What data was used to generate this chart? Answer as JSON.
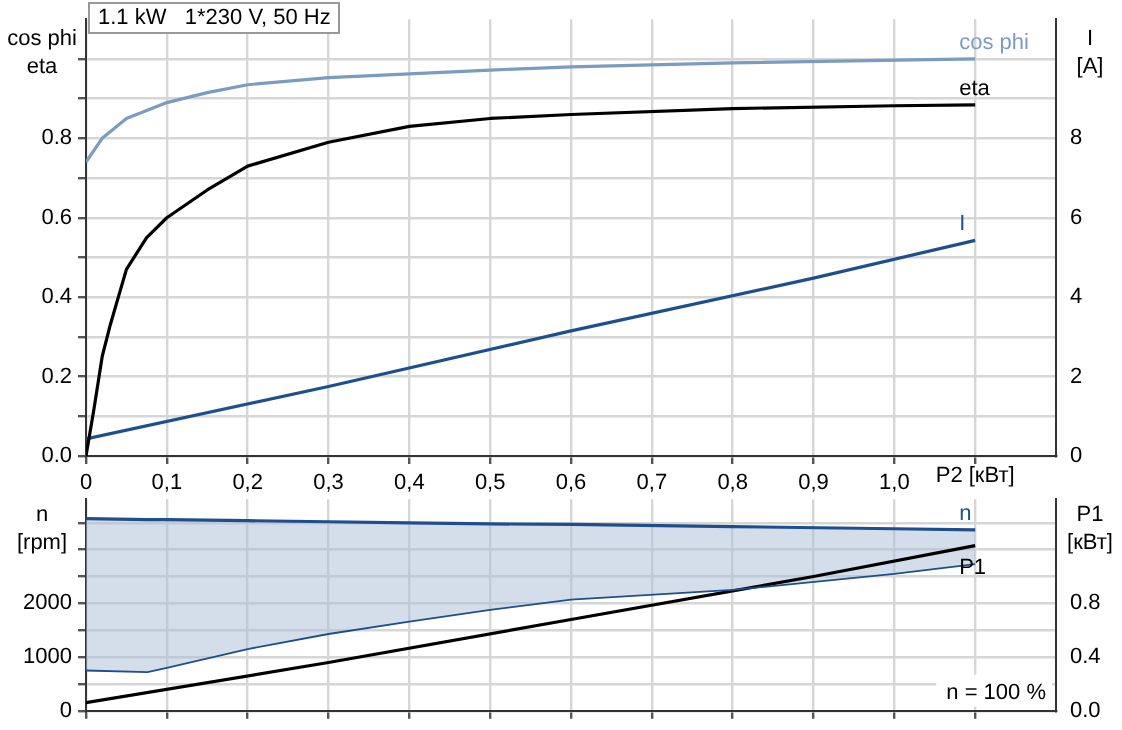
{
  "chart_data": [
    {
      "type": "line",
      "title": "1.1 kW   1*230 V, 50 Hz",
      "xlabel": "P2 [кВт]",
      "ylabel": "cos phi\neta",
      "y2label": "I\n[A]",
      "xlim": [
        0,
        1.2
      ],
      "xticks": [
        0,
        {
          "value": 0.1,
          "label": "0,1"
        },
        {
          "value": 0.2,
          "label": "0,2"
        },
        {
          "value": 0.3,
          "label": "0,3"
        },
        {
          "value": 0.4,
          "label": "0,4"
        },
        {
          "value": 0.5,
          "label": "0,5"
        },
        {
          "value": 0.6,
          "label": "0,6"
        },
        {
          "value": 0.7,
          "label": "0,7"
        },
        {
          "value": 0.8,
          "label": "0,8"
        },
        {
          "value": 0.9,
          "label": "0,9"
        },
        {
          "value": 1.0,
          "label": "1,0"
        },
        {
          "value": 1.1,
          "label": null
        }
      ],
      "ylim": [
        0,
        1.1
      ],
      "yticks": [
        {
          "value": 0,
          "label": "0.0"
        },
        {
          "value": 0.1,
          "label": null
        },
        {
          "value": 0.2,
          "label": "0.2"
        },
        {
          "value": 0.3,
          "label": null
        },
        {
          "value": 0.4,
          "label": "0.4"
        },
        {
          "value": 0.5,
          "label": null
        },
        {
          "value": 0.6,
          "label": "0.6"
        },
        {
          "value": 0.7,
          "label": null
        },
        {
          "value": 0.8,
          "label": "0.8"
        },
        {
          "value": 0.9,
          "label": null
        },
        {
          "value": 1.0,
          "label": null
        }
      ],
      "y2lim": [
        0,
        11
      ],
      "y2ticks": [
        0,
        {
          "value": 1,
          "label": null
        },
        2,
        {
          "value": 3,
          "label": null
        },
        4,
        {
          "value": 5,
          "label": null
        },
        6,
        {
          "value": 7,
          "label": null
        },
        8,
        {
          "value": 9,
          "label": null
        },
        {
          "value": 10,
          "label": null
        }
      ],
      "grid": true,
      "legend": false,
      "marker": "none",
      "line_style": "solid",
      "series": [
        {
          "name": "cos phi",
          "color": "#7b9cc0",
          "x": [
            0,
            0.02,
            0.05,
            0.1,
            0.15,
            0.2,
            0.3,
            0.5,
            0.6,
            0.8,
            1.1
          ],
          "values": [
            0.74,
            0.8,
            0.85,
            0.89,
            0.915,
            0.935,
            0.953,
            0.972,
            0.98,
            0.99,
            1.0
          ]
        },
        {
          "name": "eta",
          "color": "#000000",
          "x": [
            0,
            0.01,
            0.02,
            0.03,
            0.04,
            0.05,
            0.075,
            0.1,
            0.15,
            0.2,
            0.3,
            0.4,
            0.5,
            0.6,
            0.8,
            1.0,
            1.1
          ],
          "values": [
            0,
            0.12,
            0.25,
            0.33,
            0.4,
            0.47,
            0.55,
            0.6,
            0.67,
            0.73,
            0.79,
            0.83,
            0.85,
            0.86,
            0.875,
            0.882,
            0.884
          ]
        },
        {
          "name": "I",
          "color": "#1f4e8c",
          "axis": "y2",
          "x": [
            0,
            0.3,
            0.6,
            0.9,
            1.1
          ],
          "values": [
            0.43,
            1.75,
            3.15,
            4.48,
            5.43
          ]
        }
      ]
    },
    {
      "type": "line",
      "ylabel": "n\n[rpm]",
      "y2label": "P1\n[кВт]",
      "tick_labels": "y",
      "xlim": [
        0,
        1.2
      ],
      "xticks": [
        0,
        0.1,
        0.2,
        0.3,
        0.4,
        0.5,
        0.6,
        0.7,
        0.8,
        0.9,
        1.0,
        1.1
      ],
      "ylim": [
        0,
        3940
      ],
      "yticks": [
        0,
        {
          "value": 500,
          "label": null
        },
        1000,
        {
          "value": 1500,
          "label": null
        },
        2000,
        {
          "value": 2500,
          "label": null
        },
        {
          "value": 3000,
          "label": null
        },
        {
          "value": 3500,
          "label": null
        }
      ],
      "y2lim": [
        0,
        1.576
      ],
      "y2ticks": [
        {
          "value": 0,
          "label": "0.0"
        },
        {
          "value": 0.2,
          "label": null
        },
        {
          "value": 0.4,
          "label": "0.4"
        },
        {
          "value": 0.6,
          "label": null
        },
        {
          "value": 0.8,
          "label": "0.8"
        },
        {
          "value": 1.0,
          "label": null
        },
        {
          "value": 1.2,
          "label": null
        },
        {
          "value": 1.4,
          "label": null
        }
      ],
      "grid": true,
      "legend": false,
      "marker": "none",
      "line_style": "solid",
      "annotations": [
        "n = 100 %"
      ],
      "series": [
        {
          "name": "n",
          "color": "#1f4e8c",
          "x": [
            0,
            0.076,
            0.1,
            0.2,
            0.3,
            0.4,
            0.5,
            0.6,
            0.8,
            1.0,
            1.1
          ],
          "values": [
            3580,
            3560,
            3560,
            3540,
            3520,
            3500,
            3480,
            3470,
            3430,
            3390,
            3370
          ],
          "lower": [
            750,
            720,
            800,
            1150,
            1430,
            1660,
            1880,
            2070,
            2250,
            2550,
            2730
          ],
          "upper": [
            3580,
            3560,
            3560,
            3540,
            3520,
            3500,
            3480,
            3470,
            3430,
            3390,
            3370
          ]
        },
        {
          "color": "#1f4e8c",
          "x": [
            0,
            0.076,
            0.1,
            0.2,
            0.3,
            0.4,
            0.5,
            0.6,
            0.8,
            1.0,
            1.1
          ],
          "values": [
            750,
            720,
            800,
            1150,
            1430,
            1660,
            1880,
            2070,
            2250,
            2550,
            2730
          ]
        },
        {
          "name": "P1",
          "color": "#000000",
          "axis": "y2",
          "x": [
            0,
            0.3,
            0.6,
            0.9,
            1.1
          ],
          "values": [
            0.06,
            0.36,
            0.68,
            1.0,
            1.23
          ]
        }
      ]
    }
  ]
}
